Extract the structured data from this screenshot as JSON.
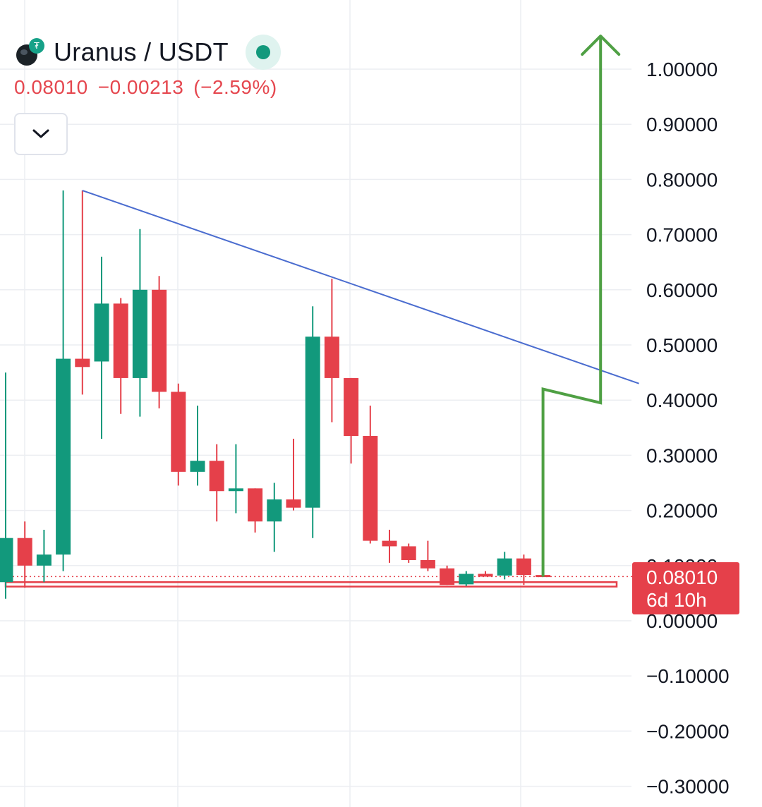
{
  "header": {
    "symbol": "Uranus / USDT",
    "last_price": "0.08010",
    "change": "−0.00213",
    "change_pct": "(−2.59%)",
    "logo_icon": "uranus-coin-icon",
    "status_icon": "market-open-dot-icon",
    "collapse_icon": "chevron-down-icon"
  },
  "price_tag": {
    "price": "0.08010",
    "countdown": "6d 10h"
  },
  "colors": {
    "up": "#12997c",
    "down": "#e5404a",
    "trendline": "#4a6ccf",
    "arrow": "#4fa044",
    "grid": "#eceef2",
    "axis_text": "#131722"
  },
  "chart_data": {
    "type": "candlestick",
    "y_axis": {
      "min": -0.3,
      "max": 1.0,
      "step": 0.1,
      "tick_labels": [
        "1.00000",
        "0.90000",
        "0.80000",
        "0.70000",
        "0.60000",
        "0.50000",
        "0.40000",
        "0.30000",
        "0.20000",
        "0.10000",
        "0.00000",
        "−0.10000",
        "−0.20000",
        "−0.30000"
      ]
    },
    "grid": true,
    "candles": [
      {
        "o": 0.07,
        "h": 0.45,
        "l": 0.04,
        "c": 0.15
      },
      {
        "o": 0.15,
        "h": 0.18,
        "l": 0.06,
        "c": 0.1
      },
      {
        "o": 0.1,
        "h": 0.165,
        "l": 0.07,
        "c": 0.12
      },
      {
        "o": 0.12,
        "h": 0.78,
        "l": 0.09,
        "c": 0.475
      },
      {
        "o": 0.475,
        "h": 0.78,
        "l": 0.41,
        "c": 0.46
      },
      {
        "o": 0.47,
        "h": 0.66,
        "l": 0.33,
        "c": 0.575
      },
      {
        "o": 0.575,
        "h": 0.585,
        "l": 0.375,
        "c": 0.44
      },
      {
        "o": 0.44,
        "h": 0.71,
        "l": 0.37,
        "c": 0.6
      },
      {
        "o": 0.6,
        "h": 0.625,
        "l": 0.385,
        "c": 0.415
      },
      {
        "o": 0.415,
        "h": 0.43,
        "l": 0.245,
        "c": 0.27
      },
      {
        "o": 0.27,
        "h": 0.39,
        "l": 0.245,
        "c": 0.29
      },
      {
        "o": 0.29,
        "h": 0.32,
        "l": 0.18,
        "c": 0.235
      },
      {
        "o": 0.235,
        "h": 0.32,
        "l": 0.195,
        "c": 0.24
      },
      {
        "o": 0.24,
        "h": 0.24,
        "l": 0.16,
        "c": 0.18
      },
      {
        "o": 0.18,
        "h": 0.25,
        "l": 0.125,
        "c": 0.22
      },
      {
        "o": 0.22,
        "h": 0.33,
        "l": 0.2,
        "c": 0.205
      },
      {
        "o": 0.205,
        "h": 0.57,
        "l": 0.15,
        "c": 0.515
      },
      {
        "o": 0.515,
        "h": 0.62,
        "l": 0.36,
        "c": 0.44
      },
      {
        "o": 0.44,
        "h": 0.44,
        "l": 0.285,
        "c": 0.335
      },
      {
        "o": 0.335,
        "h": 0.39,
        "l": 0.14,
        "c": 0.145
      },
      {
        "o": 0.145,
        "h": 0.165,
        "l": 0.105,
        "c": 0.135
      },
      {
        "o": 0.135,
        "h": 0.14,
        "l": 0.105,
        "c": 0.11
      },
      {
        "o": 0.11,
        "h": 0.145,
        "l": 0.09,
        "c": 0.095
      },
      {
        "o": 0.095,
        "h": 0.1,
        "l": 0.065,
        "c": 0.065
      },
      {
        "o": 0.066,
        "h": 0.09,
        "l": 0.063,
        "c": 0.085
      },
      {
        "o": 0.085,
        "h": 0.09,
        "l": 0.08,
        "c": 0.08
      },
      {
        "o": 0.082,
        "h": 0.125,
        "l": 0.075,
        "c": 0.113
      },
      {
        "o": 0.113,
        "h": 0.12,
        "l": 0.065,
        "c": 0.083
      },
      {
        "o": 0.083,
        "h": 0.083,
        "l": 0.08,
        "c": 0.0801
      }
    ],
    "trendline": [
      {
        "i": 4,
        "y": 0.78
      },
      {
        "i": 33,
        "y": 0.43
      }
    ],
    "support_zone": [
      0.062,
      0.07
    ],
    "last_price_line": 0.0801,
    "projection_arrow": [
      {
        "i": 28,
        "y": 0.08
      },
      {
        "i": 28,
        "y": 0.42
      },
      {
        "i": 31,
        "y": 0.395
      },
      {
        "i": 31,
        "y": 1.06
      }
    ]
  }
}
